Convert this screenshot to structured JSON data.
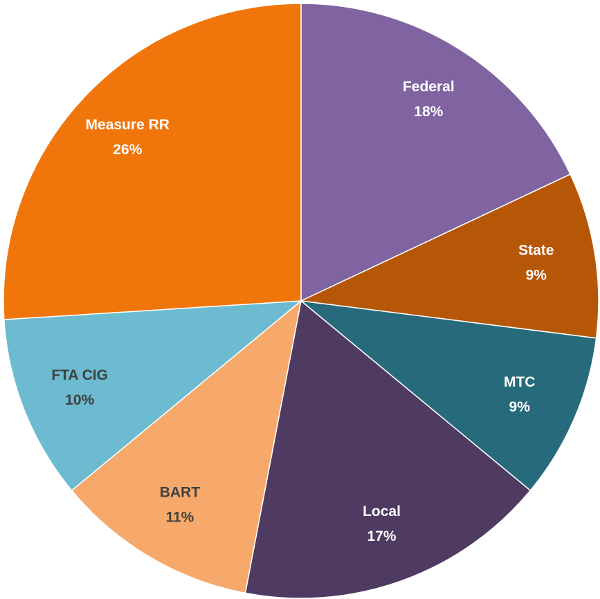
{
  "chart_data": {
    "type": "pie",
    "categories": [
      "Federal",
      "State",
      "MTC",
      "Local",
      "BART",
      "FTA CIG",
      "Measure RR"
    ],
    "values": [
      18,
      9,
      9,
      17,
      11,
      10,
      26
    ],
    "value_labels": [
      "18%",
      "9%",
      "9%",
      "17%",
      "11%",
      "10%",
      "26%"
    ],
    "colors": [
      "#8064a2",
      "#b65708",
      "#276a7c",
      "#4f3b62",
      "#f6a96a",
      "#6cbbd0",
      "#f0760c"
    ]
  }
}
